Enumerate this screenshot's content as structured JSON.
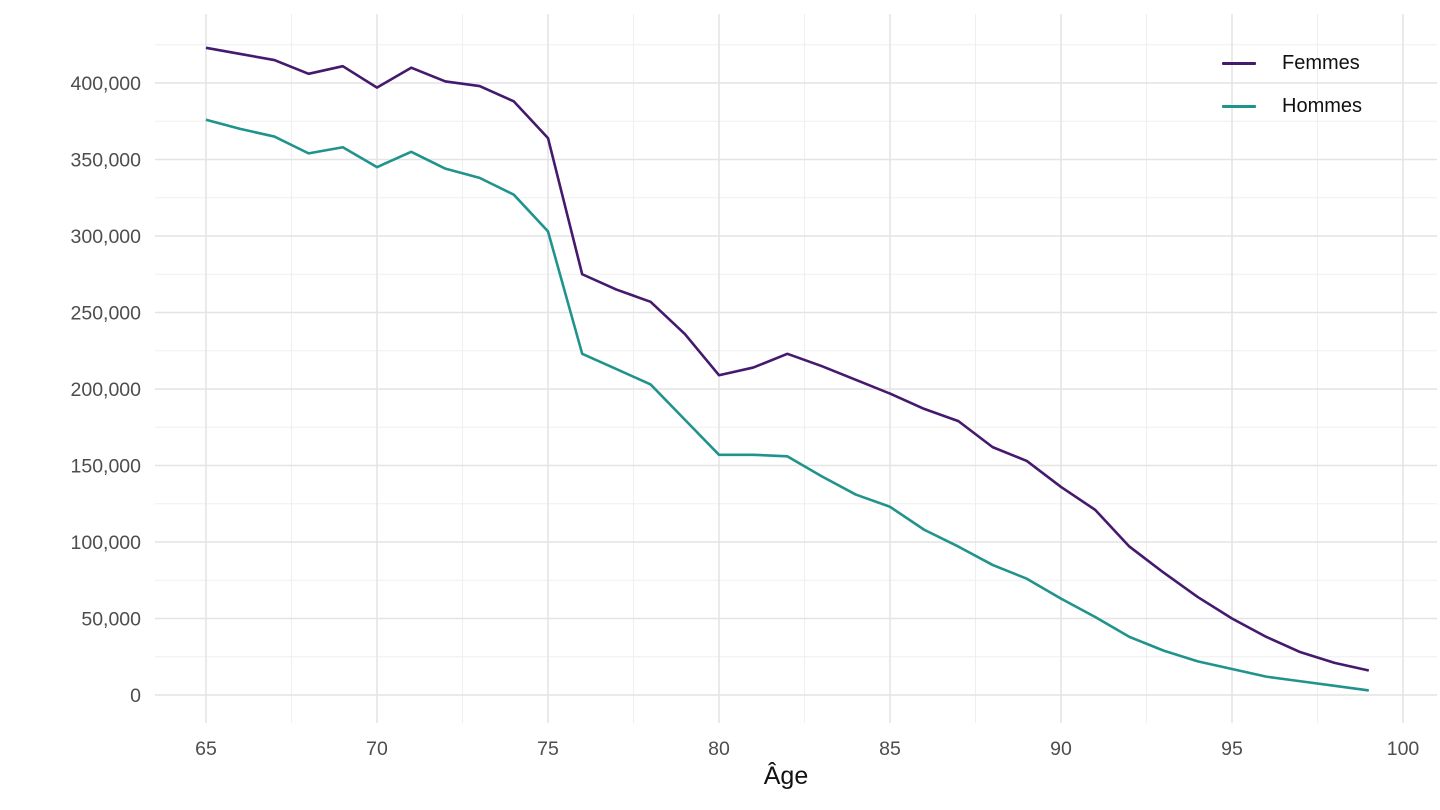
{
  "chart_data": {
    "type": "line",
    "title": "",
    "xlabel": "Âge",
    "ylabel": "",
    "grid": "major+minor",
    "legend_position": "top-right-inside",
    "xlim": [
      63.5,
      101
    ],
    "ylim": [
      0,
      425000
    ],
    "x": [
      65,
      66,
      67,
      68,
      69,
      70,
      71,
      72,
      73,
      74,
      75,
      76,
      77,
      78,
      79,
      80,
      81,
      82,
      83,
      84,
      85,
      86,
      87,
      88,
      89,
      90,
      91,
      92,
      93,
      94,
      95,
      96,
      97,
      98,
      99
    ],
    "series": [
      {
        "name": "Femmes",
        "color": "#45196d",
        "values": [
          423000,
          419000,
          415000,
          406000,
          411000,
          397000,
          410000,
          401000,
          398000,
          388000,
          364000,
          275000,
          265000,
          257000,
          236000,
          209000,
          214000,
          223000,
          215000,
          206000,
          197000,
          187000,
          179000,
          162000,
          153000,
          136000,
          121000,
          97000,
          80000,
          64000,
          50000,
          38000,
          28000,
          21000,
          16000
        ]
      },
      {
        "name": "Hommes",
        "color": "#21938d",
        "values": [
          376000,
          370000,
          365000,
          354000,
          358000,
          345000,
          355000,
          344000,
          338000,
          327000,
          303000,
          223000,
          213000,
          203000,
          180000,
          157000,
          157000,
          156000,
          143000,
          131000,
          123000,
          108000,
          97000,
          85000,
          76000,
          63000,
          51000,
          38000,
          29000,
          22000,
          17000,
          12000,
          9000,
          6000,
          3000
        ]
      }
    ],
    "x_ticks": {
      "values": [
        65,
        70,
        75,
        80,
        85,
        90,
        95,
        100
      ],
      "labels": [
        "65",
        "70",
        "75",
        "80",
        "85",
        "90",
        "95",
        "100"
      ]
    },
    "y_ticks": {
      "values": [
        0,
        50000,
        100000,
        150000,
        200000,
        250000,
        300000,
        350000,
        400000
      ],
      "labels": [
        "0",
        "50,000",
        "100,000",
        "150,000",
        "200,000",
        "250,000",
        "300,000",
        "350,000",
        "400,000"
      ]
    },
    "style": {
      "grid_major_color": "#e4e4e4",
      "grid_minor_color": "#efefef",
      "tick_label_color": "#4d4d4d",
      "axis_title_color": "#111111",
      "background": "#ffffff"
    }
  }
}
